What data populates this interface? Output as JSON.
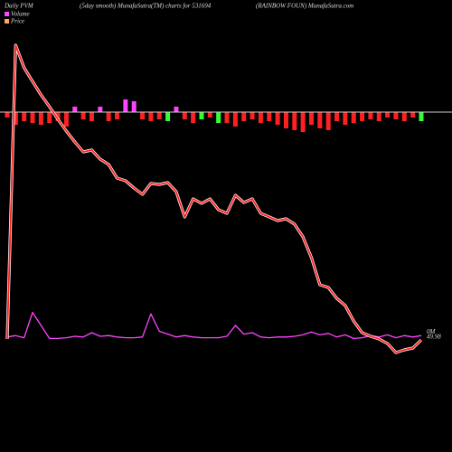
{
  "chart_data": {
    "type": "line",
    "title": "Daily PVM",
    "subtitle": "(5day smooth) MunafaSutra(TM) charts for 531694",
    "source": "(RAINBOW FOUN) MunafaSutra.com",
    "ylim": [
      15.91,
      153.28
    ],
    "y2lim": [
      -0.155,
      0.47
    ],
    "y3lim": [
      -376,
      124
    ],
    "series": [
      {
        "name": "Volume",
        "color": "#ff44ff",
        "legend_color": "#ff44ff",
        "axis": "y2",
        "values": [
          0.004,
          0.006,
          0.003,
          0.038,
          0.02,
          0.002,
          0.002,
          0.003,
          0.005,
          0.004,
          0.01,
          0.005,
          0.006,
          0.004,
          0.003,
          0.003,
          0.004,
          0.036,
          0.012,
          0.008,
          0.004,
          0.006,
          0.004,
          0.003,
          0.003,
          0.003,
          0.005,
          0.02,
          0.008,
          0.01,
          0.004,
          0.003,
          0.004,
          0.004,
          0.005,
          0.007,
          0.011,
          0.007,
          0.009,
          0.004,
          0.007,
          0.002,
          0.003,
          0.006,
          0.004,
          0.007,
          0.003,
          0.006,
          0.004,
          0.006
        ],
        "value_labels": [
          null,
          null,
          null,
          null,
          null,
          null,
          null,
          null,
          null,
          null,
          null,
          null,
          null,
          null,
          null,
          null,
          null,
          null,
          null,
          null,
          null,
          null,
          null,
          null,
          null,
          null,
          null,
          null,
          null,
          null,
          null,
          null,
          null,
          null,
          null,
          null,
          null,
          null,
          null,
          null,
          null,
          null,
          null,
          null,
          null,
          null,
          null,
          null,
          null,
          "0M"
        ]
      },
      {
        "name": "Price",
        "color": "#ff2020",
        "legend_color": "#ffaa55",
        "values": [
          50.25,
          139.54,
          132.67,
          128.55,
          124.43,
          120.86,
          117.01,
          113.44,
          110.14,
          107.12,
          107.67,
          104.93,
          103.28,
          99.16,
          98.33,
          96.13,
          94.21,
          97.51,
          97.23,
          97.78,
          95.03,
          87.34,
          92.84,
          91.46,
          92.84,
          89.54,
          88.44,
          93.94,
          91.74,
          92.84,
          88.44,
          87.34,
          86.24,
          86.79,
          85.14,
          81.3,
          74.98,
          66.74,
          65.91,
          62.62,
          60.42,
          55.75,
          52.18,
          51.08,
          50.25,
          48.88,
          46.13,
          46.96,
          47.51,
          49.98
        ]
      }
    ],
    "bars": {
      "values": [
        -6,
        -14,
        -10,
        -12,
        -14,
        -12,
        -10,
        -16,
        6,
        -8,
        -10,
        6,
        -10,
        -8,
        14,
        12,
        -8,
        -10,
        -8,
        -10,
        6,
        -8,
        -12,
        -8,
        -6,
        -12,
        -12,
        -16,
        -10,
        -8,
        -12,
        -10,
        -14,
        -18,
        -20,
        -22,
        -14,
        -18,
        -20,
        -10,
        -14,
        -12,
        -10,
        -8,
        -10,
        -6,
        -8,
        -10,
        -6,
        -10
      ],
      "colors": [
        "#ff2020",
        "#ff2020",
        "#ff2020",
        "#ff2020",
        "#ff2020",
        "#ff2020",
        "#ff2020",
        "#ff2020",
        "#ff44ff",
        "#ff2020",
        "#ff2020",
        "#ff44ff",
        "#ff2020",
        "#ff2020",
        "#ff44ff",
        "#ff44ff",
        "#ff2020",
        "#ff2020",
        "#ff2020",
        "#33ff33",
        "#ff44ff",
        "#ff2020",
        "#ff2020",
        "#33ff33",
        "#ff2020",
        "#33ff33",
        "#ff2020",
        "#ff2020",
        "#ff2020",
        "#ff2020",
        "#ff2020",
        "#ff2020",
        "#ff2020",
        "#ff2020",
        "#ff2020",
        "#ff2020",
        "#ff2020",
        "#ff2020",
        "#ff2020",
        "#ff2020",
        "#ff2020",
        "#ff2020",
        "#ff2020",
        "#ff2020",
        "#ff2020",
        "#ff2020",
        "#ff2020",
        "#ff2020",
        "#ff2020",
        "#33ff33"
      ]
    }
  }
}
